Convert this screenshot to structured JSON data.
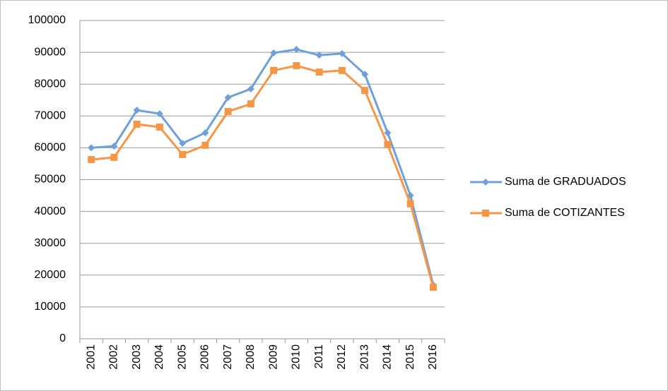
{
  "chart_data": {
    "type": "line",
    "categories": [
      "2001",
      "2002",
      "2003",
      "2004",
      "2005",
      "2006",
      "2007",
      "2008",
      "2009",
      "2010",
      "2011",
      "2012",
      "2013",
      "2014",
      "2015",
      "2016"
    ],
    "series": [
      {
        "name": "Suma de GRADUADOS",
        "color": "#6fa0d8",
        "marker": "diamond",
        "values": [
          60000,
          60500,
          71800,
          70700,
          61400,
          64700,
          75800,
          78500,
          89800,
          90900,
          89100,
          89600,
          83100,
          64700,
          45000,
          16900
        ]
      },
      {
        "name": "Suma de COTIZANTES",
        "color": "#f79646",
        "marker": "square",
        "values": [
          56300,
          57000,
          67400,
          66500,
          57900,
          60800,
          71400,
          73800,
          84300,
          85800,
          83800,
          84300,
          78000,
          61000,
          42400,
          16200
        ]
      }
    ],
    "ylim": [
      0,
      100000
    ],
    "yticks": [
      0,
      10000,
      20000,
      30000,
      40000,
      50000,
      60000,
      70000,
      80000,
      90000,
      100000
    ],
    "grid": true,
    "legend": "right"
  }
}
